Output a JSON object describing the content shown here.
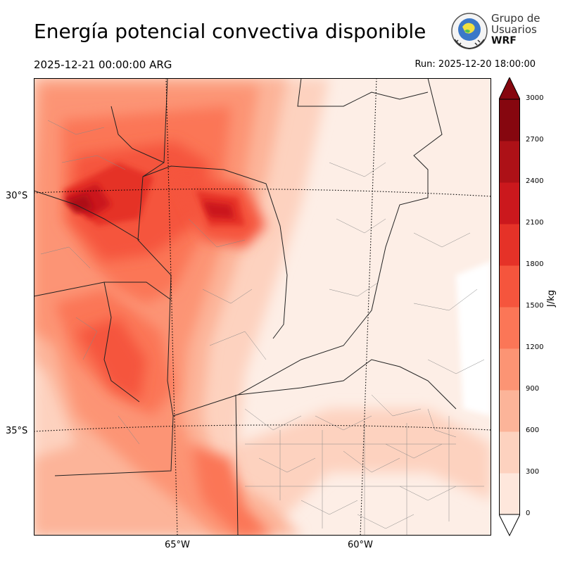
{
  "header": {
    "title": "Energía potencial convectiva disponible",
    "valid_time": "2025-12-21 00:00:00 ARG",
    "run_time": "Run: 2025-12-20 18:00:00"
  },
  "logo": {
    "line1": "Grupo de",
    "line2": "Usuarios",
    "line3": "WRF"
  },
  "map": {
    "lat_labels": [
      "30°S",
      "35°S"
    ],
    "lon_labels": [
      "65°W",
      "60°W"
    ]
  },
  "colorbar": {
    "unit": "J/kg",
    "levels": [
      0,
      300,
      600,
      900,
      1200,
      1500,
      1800,
      2100,
      2400,
      2700,
      3000
    ],
    "colors": [
      "#fee7dc",
      "#fdd2bf",
      "#fcb499",
      "#fc9474",
      "#fb7657",
      "#f5553d",
      "#e53228",
      "#cb181d",
      "#ad1117",
      "#86070f"
    ],
    "extend": "both"
  }
}
